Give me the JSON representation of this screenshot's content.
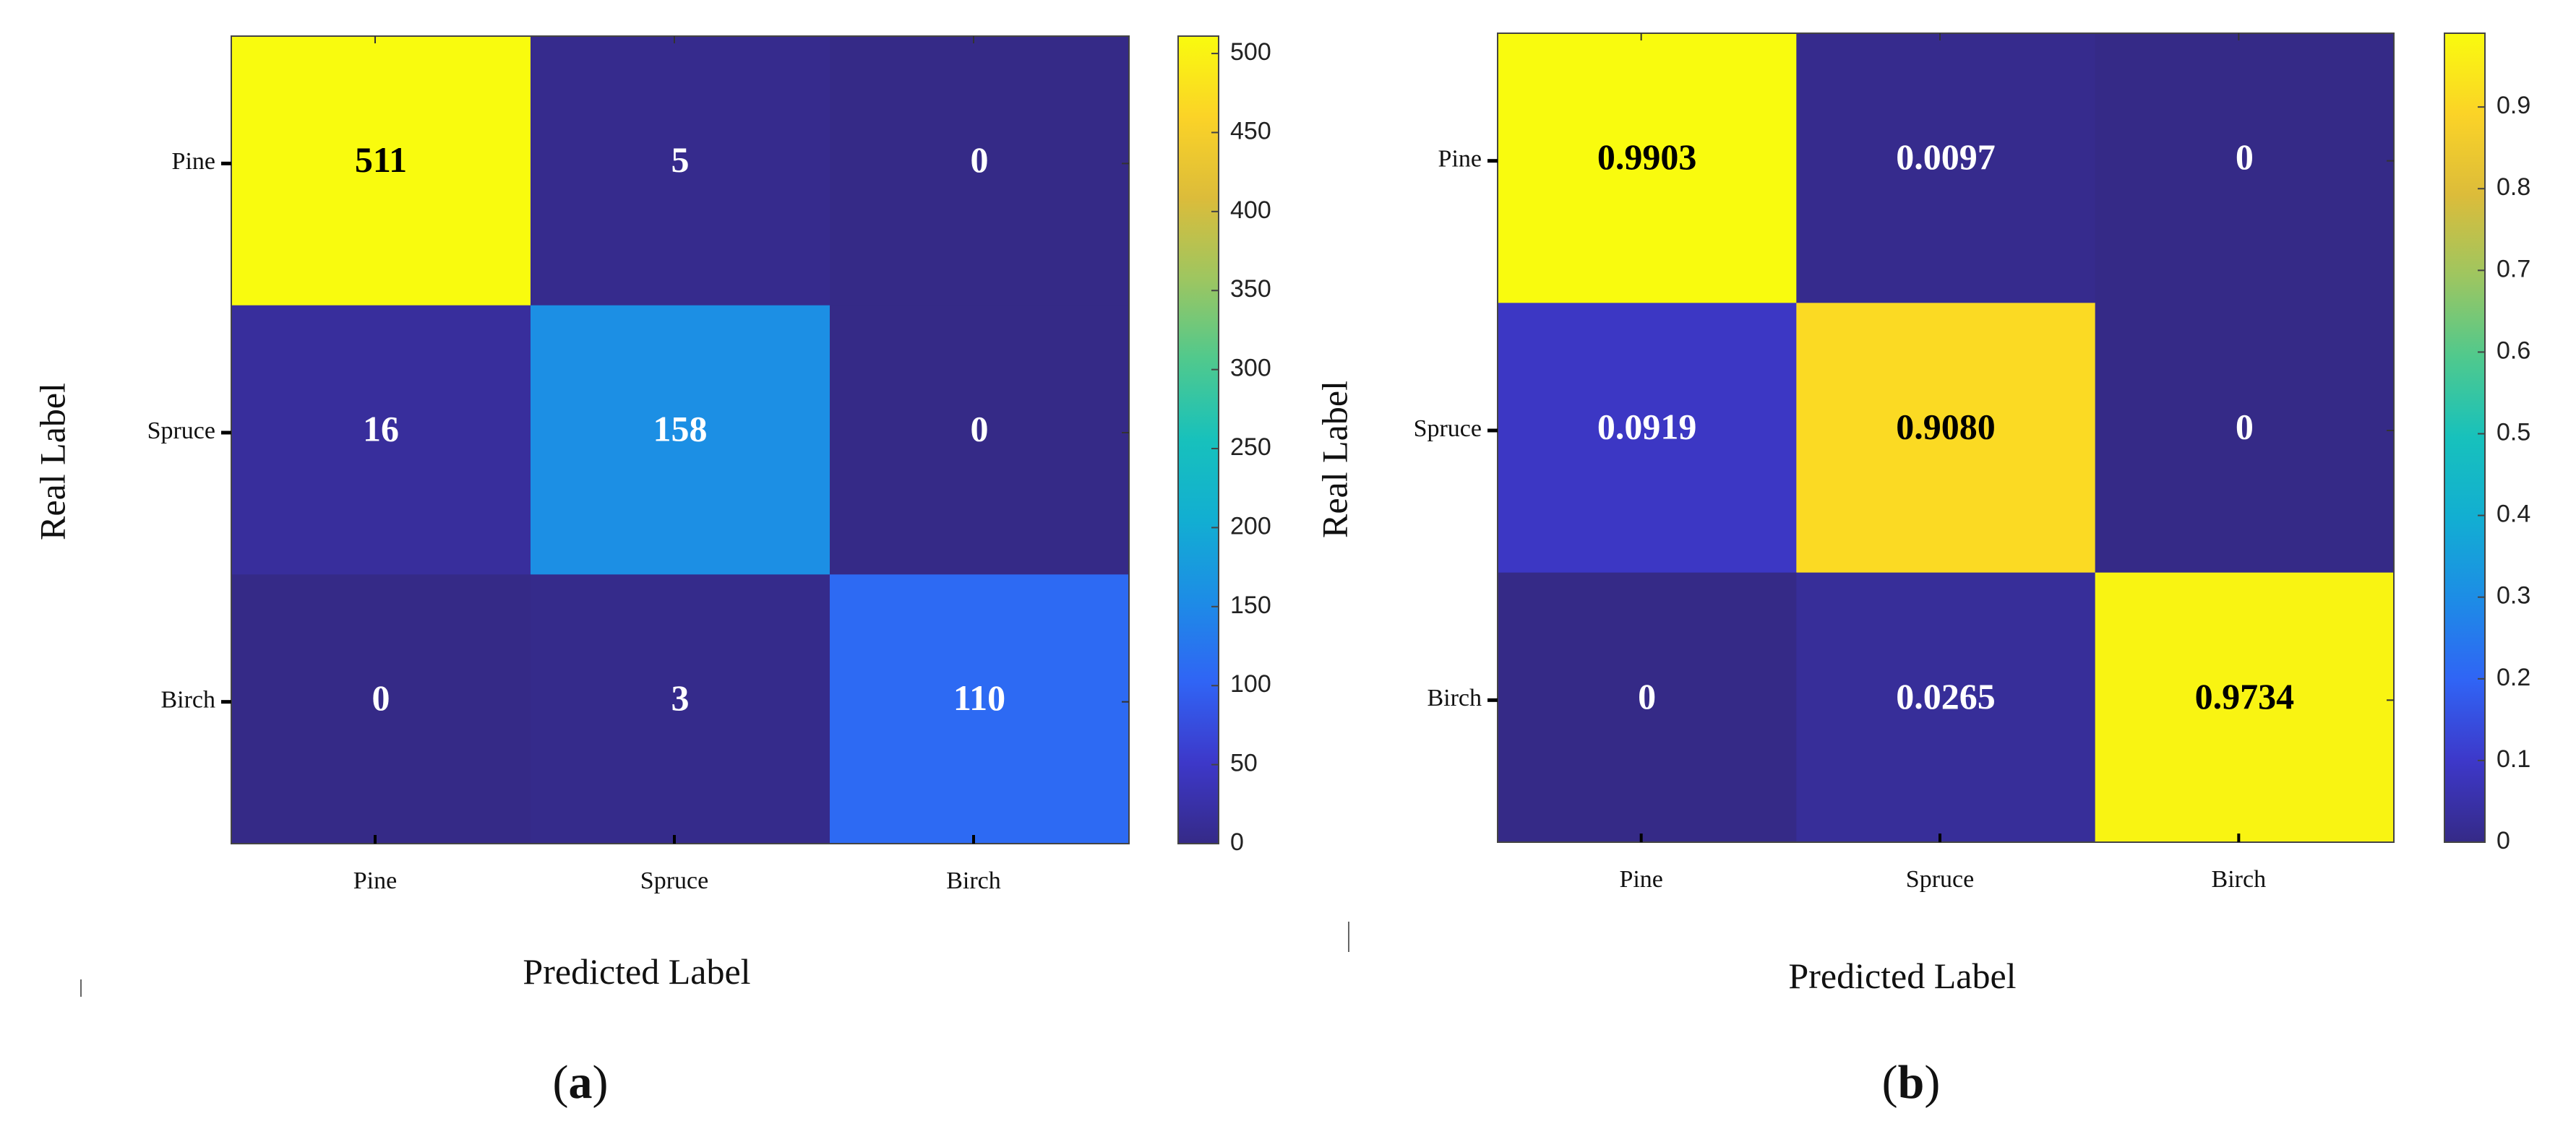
{
  "chart_data": [
    {
      "type": "heatmap",
      "panel_label": "a",
      "xlabel": "Predicted Label",
      "ylabel": "Real Label",
      "x_categories": [
        "Pine",
        "Spruce",
        "Birch"
      ],
      "y_categories": [
        "Pine",
        "Spruce",
        "Birch"
      ],
      "values": [
        [
          511,
          5,
          0
        ],
        [
          16,
          158,
          0
        ],
        [
          0,
          3,
          110
        ]
      ],
      "value_labels": [
        [
          "511",
          "5",
          "0"
        ],
        [
          "16",
          "158",
          "0"
        ],
        [
          "0",
          "3",
          "110"
        ]
      ],
      "colorbar": {
        "range": [
          0,
          511
        ],
        "ticks": [
          0,
          50,
          100,
          150,
          200,
          250,
          300,
          350,
          400,
          450,
          500
        ],
        "tick_labels": [
          "0",
          "50",
          "100",
          "150",
          "200",
          "250",
          "300",
          "350",
          "400",
          "450",
          "500"
        ]
      },
      "colormap": "parula"
    },
    {
      "type": "heatmap",
      "panel_label": "b",
      "xlabel": "Predicted Label",
      "ylabel": "Real Label",
      "x_categories": [
        "Pine",
        "Spruce",
        "Birch"
      ],
      "y_categories": [
        "Pine",
        "Spruce",
        "Birch"
      ],
      "values": [
        [
          0.9903,
          0.0097,
          0
        ],
        [
          0.0919,
          0.908,
          0
        ],
        [
          0,
          0.0265,
          0.9734
        ]
      ],
      "value_labels": [
        [
          "0.9903",
          "0.0097",
          "0"
        ],
        [
          "0.0919",
          "0.9080",
          "0"
        ],
        [
          "0",
          "0.0265",
          "0.9734"
        ]
      ],
      "colorbar": {
        "range": [
          0,
          0.9903
        ],
        "ticks": [
          0,
          0.1,
          0.2,
          0.3,
          0.4,
          0.5,
          0.6,
          0.7,
          0.8,
          0.9
        ],
        "tick_labels": [
          "0",
          "0.1",
          "0.2",
          "0.3",
          "0.4",
          "0.5",
          "0.6",
          "0.7",
          "0.8",
          "0.9"
        ]
      },
      "colormap": "parula"
    }
  ]
}
